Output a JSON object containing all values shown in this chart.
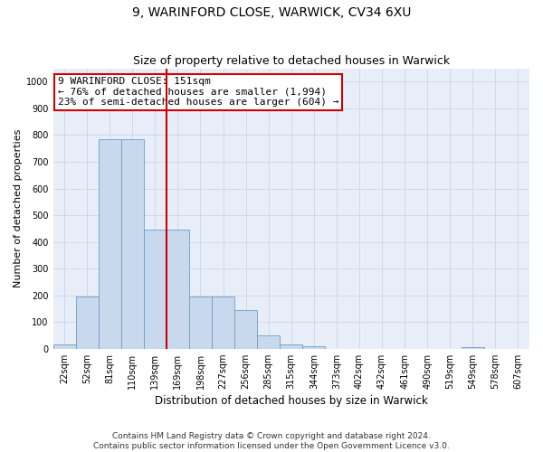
{
  "title1": "9, WARINFORD CLOSE, WARWICK, CV34 6XU",
  "title2": "Size of property relative to detached houses in Warwick",
  "xlabel": "Distribution of detached houses by size in Warwick",
  "ylabel": "Number of detached properties",
  "bar_labels": [
    "22sqm",
    "52sqm",
    "81sqm",
    "110sqm",
    "139sqm",
    "169sqm",
    "198sqm",
    "227sqm",
    "256sqm",
    "285sqm",
    "315sqm",
    "344sqm",
    "373sqm",
    "402sqm",
    "432sqm",
    "461sqm",
    "490sqm",
    "519sqm",
    "549sqm",
    "578sqm",
    "607sqm"
  ],
  "bar_values": [
    15,
    195,
    785,
    785,
    445,
    445,
    195,
    195,
    145,
    50,
    15,
    10,
    0,
    0,
    0,
    0,
    0,
    0,
    7,
    0,
    0
  ],
  "bar_color": "#c9d9ed",
  "bar_edgecolor": "#6e9dc8",
  "vline_x": 4.5,
  "vline_color": "#cc0000",
  "annotation_text": "9 WARINFORD CLOSE: 151sqm\n← 76% of detached houses are smaller (1,994)\n23% of semi-detached houses are larger (604) →",
  "annotation_box_color": "#ffffff",
  "annotation_box_edgecolor": "#cc0000",
  "ylim": [
    0,
    1050
  ],
  "yticks": [
    0,
    100,
    200,
    300,
    400,
    500,
    600,
    700,
    800,
    900,
    1000
  ],
  "grid_color": "#d0d8e8",
  "background_color": "#e8eef8",
  "footnote": "Contains HM Land Registry data © Crown copyright and database right 2024.\nContains public sector information licensed under the Open Government Licence v3.0.",
  "title1_fontsize": 10,
  "title2_fontsize": 9,
  "xlabel_fontsize": 8.5,
  "ylabel_fontsize": 8,
  "tick_fontsize": 7,
  "annotation_fontsize": 8,
  "footnote_fontsize": 6.5
}
